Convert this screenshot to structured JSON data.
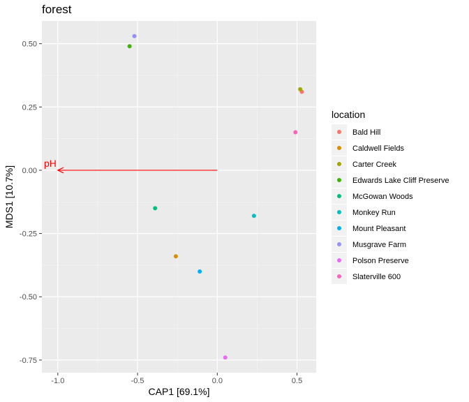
{
  "chart_data": {
    "type": "scatter",
    "title": "forest",
    "xlabel": "CAP1   [69.1%]",
    "ylabel": "MDS1   [10.7%]",
    "xlim": [
      -1.1,
      0.62
    ],
    "ylim": [
      -0.8,
      0.59
    ],
    "x_ticks": [
      -1.0,
      -0.5,
      0.0,
      0.5
    ],
    "x_tick_labels": [
      "-1.0",
      "-0.5",
      "0.0",
      "0.5"
    ],
    "y_ticks": [
      -0.75,
      -0.5,
      -0.25,
      0.0,
      0.25,
      0.5
    ],
    "y_tick_labels": [
      "-0.75",
      "-0.50",
      "-0.25",
      "0.00",
      "0.25",
      "0.50"
    ],
    "grid": true,
    "legend_position": "right",
    "legend_title": "location",
    "series": [
      {
        "name": "Bald Hill",
        "color": "#F8766D",
        "points": [
          {
            "x": 0.53,
            "y": 0.31
          }
        ]
      },
      {
        "name": "Caldwell Fields",
        "color": "#D89000",
        "points": [
          {
            "x": -0.26,
            "y": -0.34
          }
        ]
      },
      {
        "name": "Carter Creek",
        "color": "#A3A500",
        "points": [
          {
            "x": 0.52,
            "y": 0.32
          }
        ]
      },
      {
        "name": "Edwards Lake Cliff Preserve",
        "color": "#39B600",
        "points": [
          {
            "x": -0.55,
            "y": 0.49
          }
        ]
      },
      {
        "name": "McGowan Woods",
        "color": "#00BF7D",
        "points": [
          {
            "x": -0.39,
            "y": -0.15
          }
        ]
      },
      {
        "name": "Monkey Run",
        "color": "#00BFC4",
        "points": [
          {
            "x": 0.23,
            "y": -0.18
          }
        ]
      },
      {
        "name": "Mount Pleasant",
        "color": "#00B0F6",
        "points": [
          {
            "x": -0.11,
            "y": -0.4
          }
        ]
      },
      {
        "name": "Musgrave Farm",
        "color": "#9590FF",
        "points": [
          {
            "x": -0.52,
            "y": 0.53
          }
        ]
      },
      {
        "name": "Polson Preserve",
        "color": "#E76BF3",
        "points": [
          {
            "x": 0.05,
            "y": -0.74
          }
        ]
      },
      {
        "name": "Slaterville 600",
        "color": "#FF62BC",
        "points": [
          {
            "x": 0.49,
            "y": 0.15
          }
        ]
      }
    ],
    "arrows": [
      {
        "label": "pH",
        "x0": 0.0,
        "y0": 0.0,
        "x1": -1.0,
        "y1": 0.0,
        "color": "#FF0000"
      }
    ]
  }
}
